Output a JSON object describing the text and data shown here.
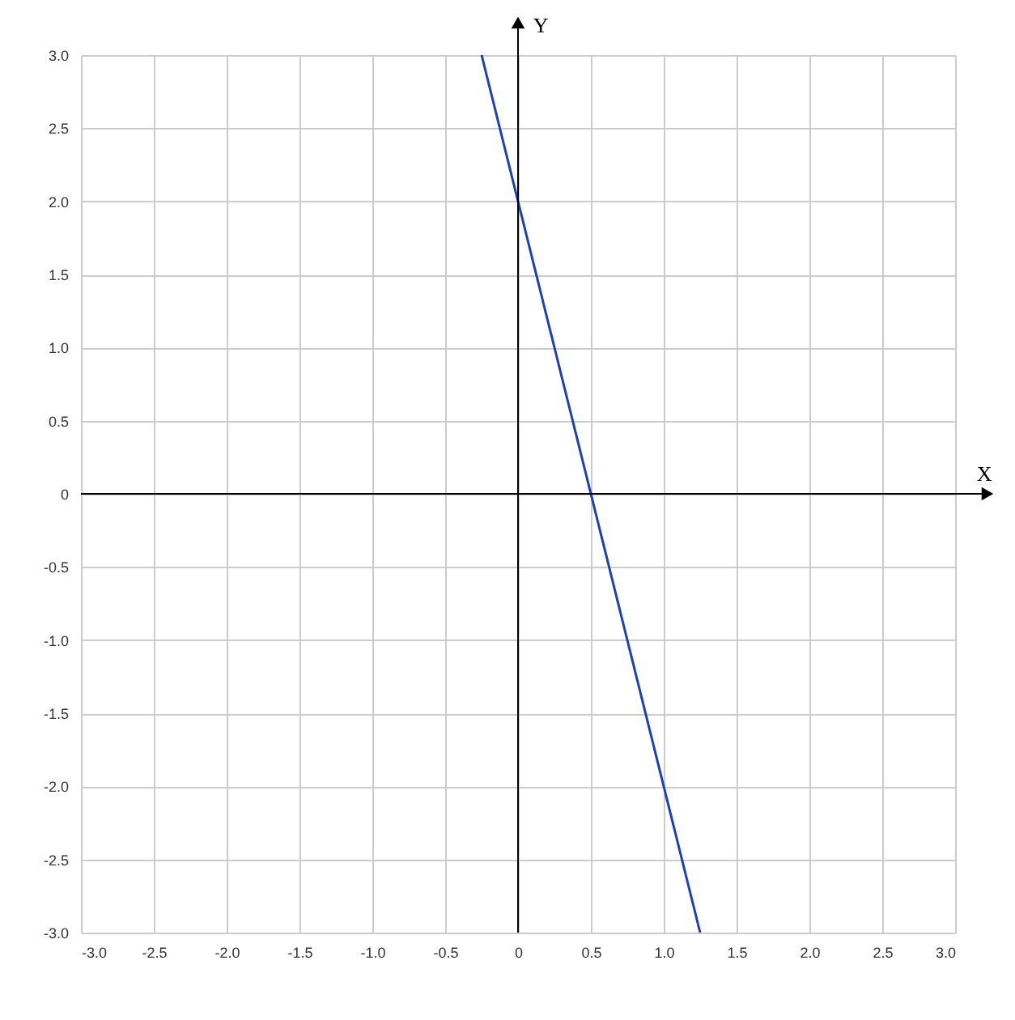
{
  "chart_data": {
    "type": "line",
    "xlabel": "X",
    "ylabel": "Y",
    "series": [
      {
        "color": "#2040b0",
        "x": [
          -0.25,
          1.25
        ],
        "values": [
          3,
          -3
        ]
      }
    ],
    "xlim": [
      -3,
      3
    ],
    "ylim": [
      -3,
      3
    ],
    "xticks": [
      {
        "value": -3,
        "label": "-3.0"
      },
      -2.5,
      {
        "value": -2,
        "label": "-2.0"
      },
      -1.5,
      {
        "value": -1,
        "label": "-1.0"
      },
      -0.5,
      0,
      0.5,
      {
        "value": 1,
        "label": "1.0"
      },
      1.5,
      {
        "value": 2,
        "label": "2.0"
      },
      2.5,
      {
        "value": 3,
        "label": "3.0"
      }
    ],
    "yticks": [
      {
        "value": -3,
        "label": "-3.0"
      },
      -2.5,
      {
        "value": -2,
        "label": "-2.0"
      },
      -1.5,
      {
        "value": -1,
        "label": "-1.0"
      },
      -0.5,
      0,
      0.5,
      {
        "value": 1,
        "label": "1.0"
      },
      1.5,
      {
        "value": 2,
        "label": "2.0"
      },
      2.5,
      {
        "value": 3,
        "label": "3.0"
      }
    ],
    "grid": true,
    "marker": "none",
    "line_style": "solid"
  }
}
